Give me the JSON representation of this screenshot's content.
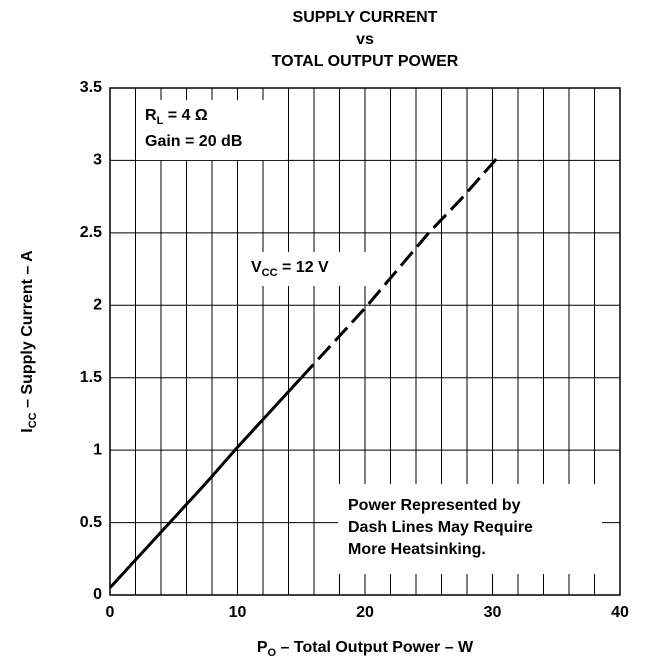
{
  "chart_data": {
    "type": "line",
    "title": [
      "SUPPLY CURRENT",
      "vs",
      "TOTAL OUTPUT POWER"
    ],
    "x_label": {
      "main": "P",
      "sub": "O",
      "rest": " – Total Output Power – W"
    },
    "y_label": {
      "main": "I",
      "sub": "CC",
      "rest": " – Supply Current – A"
    },
    "x": [
      0,
      2.5,
      5,
      7.5,
      10,
      12.5,
      15,
      17.5,
      20,
      22.5,
      25,
      27.5,
      30.5
    ],
    "series": [
      {
        "line_style": "solid",
        "color": "#000000",
        "values": [
          0.05,
          0.29,
          0.53,
          0.77,
          1.02,
          1.26,
          1.5,
          null,
          null,
          null,
          null,
          null,
          null
        ]
      },
      {
        "line_style": "dashed",
        "color": "#000000",
        "values": [
          null,
          null,
          null,
          null,
          null,
          null,
          1.5,
          1.74,
          1.98,
          2.24,
          2.5,
          2.73,
          3.03
        ]
      }
    ],
    "xlim": [
      0,
      40
    ],
    "xticks": [
      0,
      10,
      20,
      30,
      40
    ],
    "ylim": [
      0,
      3.5
    ],
    "yticks": [
      0,
      0.5,
      1,
      1.5,
      2,
      2.5,
      3,
      3.5
    ],
    "grid": true,
    "annotations": [
      {
        "main": "R",
        "sub": "L",
        "rest": " = 4 Ω"
      },
      {
        "main": "Gain = 20 dB"
      },
      {
        "main": "V",
        "sub": "CC",
        "rest": " = 12 V"
      },
      {
        "main": "Power Represented by"
      },
      {
        "main": "Dash Lines May Require"
      },
      {
        "main": "More Heatsinking."
      }
    ]
  }
}
